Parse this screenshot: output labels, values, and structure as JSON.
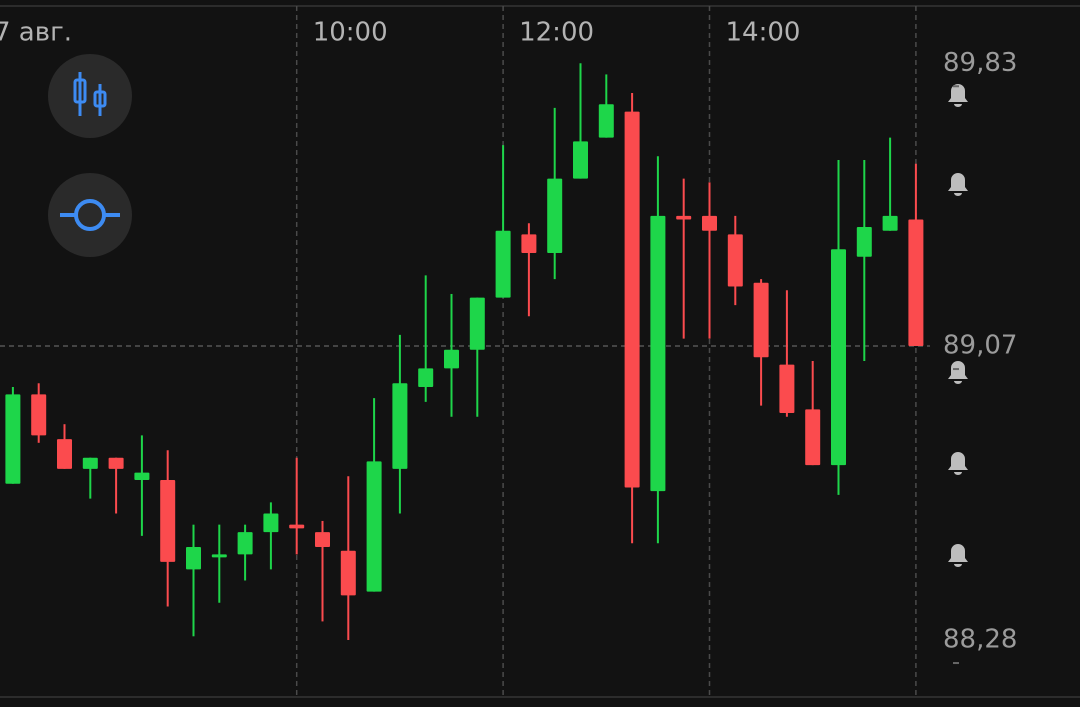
{
  "chart_data": {
    "type": "candlestick",
    "categories": [
      "7 авг.",
      null,
      null,
      null,
      null,
      null,
      null,
      null,
      null,
      null,
      null,
      "10:00",
      null,
      null,
      null,
      null,
      null,
      null,
      null,
      "12:00",
      null,
      null,
      null,
      null,
      null,
      null,
      null,
      "14:00",
      null,
      null,
      null,
      null,
      null,
      null,
      null,
      null
    ],
    "open": [
      88.7,
      88.94,
      88.82,
      88.74,
      88.77,
      88.71,
      88.71,
      88.47,
      88.51,
      88.51,
      88.57,
      88.59,
      88.57,
      88.52,
      88.41,
      88.74,
      88.96,
      89.01,
      89.06,
      89.2,
      89.37,
      89.32,
      89.52,
      89.63,
      89.7,
      88.68,
      89.42,
      89.42,
      89.37,
      89.24,
      89.02,
      88.9,
      88.75,
      89.31,
      89.38,
      89.41
    ],
    "high": [
      88.96,
      88.97,
      88.86,
      88.77,
      88.77,
      88.83,
      88.79,
      88.59,
      88.59,
      88.59,
      88.65,
      88.77,
      88.6,
      88.72,
      88.93,
      89.1,
      89.26,
      89.21,
      89.2,
      89.61,
      89.4,
      89.71,
      89.83,
      89.8,
      89.75,
      89.58,
      89.52,
      89.51,
      89.42,
      89.25,
      89.22,
      89.03,
      89.57,
      89.57,
      89.63,
      89.56
    ],
    "low": [
      88.7,
      88.81,
      88.74,
      88.66,
      88.62,
      88.56,
      88.37,
      88.29,
      88.38,
      88.44,
      88.47,
      88.51,
      88.33,
      88.28,
      88.41,
      88.62,
      88.92,
      88.88,
      88.88,
      89.2,
      89.15,
      89.25,
      89.52,
      89.63,
      88.54,
      88.54,
      89.09,
      89.09,
      89.18,
      88.91,
      88.88,
      88.75,
      88.67,
      89.03,
      89.38,
      89.07
    ],
    "close": [
      88.94,
      88.83,
      88.74,
      88.77,
      88.74,
      88.73,
      88.49,
      88.53,
      88.51,
      88.57,
      88.62,
      88.58,
      88.53,
      88.4,
      88.76,
      88.97,
      89.01,
      89.06,
      89.2,
      89.38,
      89.32,
      89.52,
      89.62,
      89.72,
      88.69,
      89.42,
      89.41,
      89.38,
      89.23,
      89.04,
      88.89,
      88.75,
      89.33,
      89.39,
      89.42,
      89.07
    ],
    "up_color": "#1ed64a",
    "down_color": "#fb4b4e",
    "ylim": [
      88.1,
      90.0
    ],
    "yticks": [
      {
        "value": 89.83,
        "label": "89,83"
      },
      {
        "value": 89.07,
        "label": "89,07"
      },
      {
        "value": 88.28,
        "label": "88,28"
      }
    ]
  }
}
